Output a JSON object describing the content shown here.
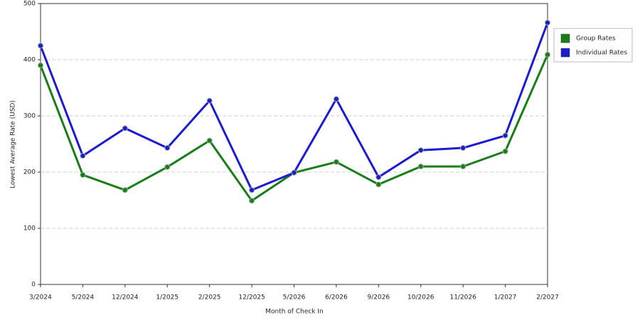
{
  "chart_data": {
    "type": "line",
    "x_label": "Month of Check In",
    "y_label": "Lowest Average Rate (USD)",
    "categories": [
      "3/2024",
      "5/2024",
      "12/2024",
      "1/2025",
      "2/2025",
      "12/2025",
      "5/2026",
      "6/2026",
      "9/2026",
      "10/2026",
      "11/2026",
      "1/2027",
      "2/2027"
    ],
    "series": [
      {
        "name": "Group Rates",
        "color": "#1a7d1a",
        "values": [
          390,
          195,
          168,
          209,
          256,
          149,
          199,
          218,
          178,
          210,
          210,
          237,
          409
        ]
      },
      {
        "name": "Individual Rates",
        "color": "#1c1ccf",
        "values": [
          425,
          229,
          278,
          243,
          327,
          168,
          199,
          330,
          191,
          239,
          243,
          265,
          466
        ]
      }
    ],
    "ylim": [
      0,
      500
    ],
    "yticks": [
      0,
      100,
      200,
      300,
      400,
      500
    ],
    "grid": true,
    "legend": "right"
  }
}
